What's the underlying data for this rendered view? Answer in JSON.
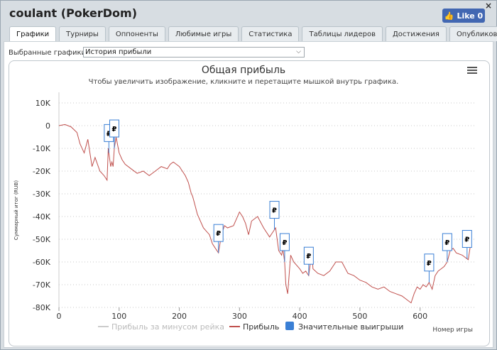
{
  "window": {
    "title": "coulant (PokerDom)",
    "close_label": "×",
    "like_label": "Like 0"
  },
  "tabs": [
    {
      "label": "Графики",
      "active": true
    },
    {
      "label": "Турниры"
    },
    {
      "label": "Оппоненты"
    },
    {
      "label": "Любимые игры"
    },
    {
      "label": "Статистика"
    },
    {
      "label": "Таблицы лидеров"
    },
    {
      "label": "Достижения"
    },
    {
      "label": "Опубликовать"
    }
  ],
  "selector": {
    "label": "Выбранные графики:",
    "value": "История прибыли"
  },
  "chart_data": {
    "type": "line",
    "title": "Общая прибыль",
    "subtitle": "Чтобы увеличить изображение, кликните и перетащите мышкой внутрь графика.",
    "xlabel": "Номер игры",
    "ylabel": "Суммарный итог (RUB)",
    "xlim": [
      0,
      690
    ],
    "ylim": [
      -80000,
      10000
    ],
    "x_ticks": [
      0,
      100,
      200,
      300,
      400,
      500,
      600
    ],
    "y_ticks": [
      10000,
      0,
      -10000,
      -20000,
      -30000,
      -40000,
      -50000,
      -60000,
      -70000,
      -80000
    ],
    "y_tick_labels": [
      "10K",
      "0",
      "-10K",
      "-20K",
      "-30K",
      "-40K",
      "-50K",
      "-60K",
      "-70K",
      "-80K"
    ],
    "grid": true,
    "legend_position": "bottom-center",
    "legend": [
      "Прибыль за минусом рейка",
      "Прибыль",
      "Значительные выигрыши"
    ],
    "series": [
      {
        "name": "Прибыль",
        "color": "#c0504d",
        "x": [
          0,
          10,
          20,
          30,
          35,
          42,
          48,
          55,
          60,
          68,
          75,
          80,
          82,
          84,
          86,
          88,
          90,
          92,
          95,
          100,
          105,
          110,
          120,
          130,
          140,
          150,
          160,
          170,
          180,
          185,
          190,
          195,
          200,
          210,
          215,
          220,
          222,
          225,
          230,
          240,
          250,
          255,
          260,
          265,
          270,
          275,
          280,
          290,
          300,
          305,
          310,
          315,
          320,
          330,
          340,
          350,
          360,
          365,
          370,
          372,
          375,
          377,
          380,
          382,
          385,
          390,
          400,
          405,
          410,
          415,
          418,
          420,
          422,
          430,
          440,
          450,
          460,
          470,
          480,
          490,
          500,
          510,
          520,
          530,
          540,
          550,
          560,
          570,
          580,
          585,
          590,
          595,
          600,
          605,
          610,
          615,
          620,
          625,
          630,
          635,
          640,
          645,
          650,
          655,
          660,
          670,
          680,
          684
        ],
        "values": [
          0,
          500,
          -500,
          -3000,
          -8000,
          -12000,
          -6000,
          -18000,
          -14000,
          -20000,
          -22000,
          -24000,
          -10000,
          -14000,
          -18000,
          -16000,
          -18000,
          -10000,
          -5000,
          -12000,
          -15000,
          -17000,
          -19000,
          -21000,
          -20000,
          -22000,
          -20000,
          -18000,
          -19000,
          -17000,
          -16000,
          -17000,
          -18000,
          -22000,
          -25000,
          -30000,
          -31000,
          -34000,
          -39000,
          -45000,
          -48000,
          -52000,
          -54000,
          -56000,
          -48000,
          -44000,
          -45000,
          -44000,
          -38000,
          -40000,
          -43000,
          -48000,
          -42000,
          -40000,
          -45000,
          -49000,
          -45000,
          -55000,
          -57000,
          -54000,
          -60000,
          -70000,
          -74000,
          -67000,
          -57000,
          -60000,
          -63000,
          -65000,
          -64000,
          -66000,
          -60000,
          -54000,
          -63000,
          -65000,
          -66000,
          -64000,
          -60000,
          -60000,
          -65000,
          -66000,
          -68000,
          -69000,
          -71000,
          -72000,
          -71000,
          -73000,
          -74000,
          -75000,
          -77000,
          -78000,
          -74000,
          -71000,
          -72000,
          -70000,
          -71000,
          -69000,
          -72000,
          -66000,
          -64000,
          -63000,
          -62000,
          -60000,
          -55000,
          -54000,
          -56000,
          -57000,
          -59000,
          -52000
        ]
      }
    ],
    "big_wins_x": [
      83,
      92,
      265,
      358,
      375,
      415,
      615,
      645,
      678
    ]
  }
}
